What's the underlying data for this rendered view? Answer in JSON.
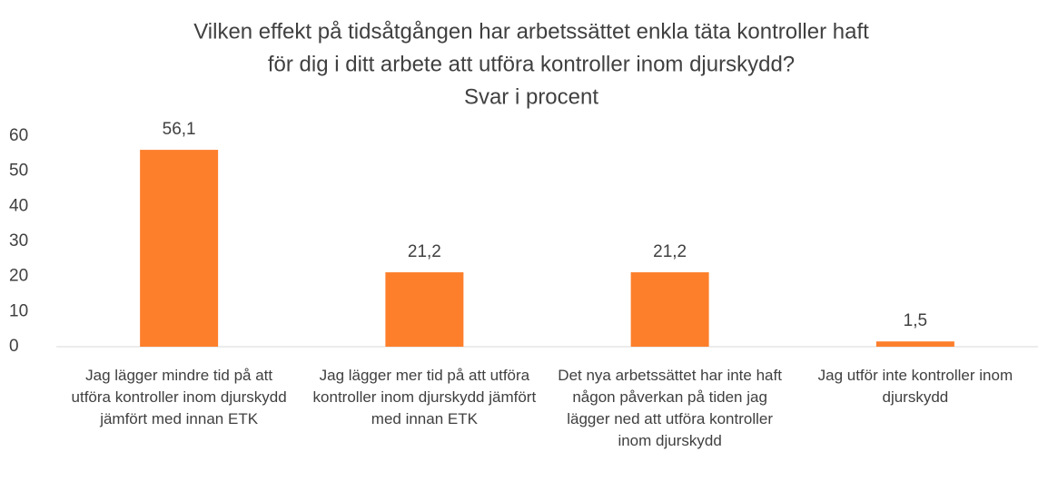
{
  "chart_data": {
    "type": "bar",
    "title": [
      "Vilken effekt på tidsåtgången har arbetssättet enkla täta kontroller haft",
      "för dig i ditt arbete att utföra kontroller inom djurskydd?"
    ],
    "subtitle": "Svar i procent",
    "categories": [
      "Jag lägger mindre tid på att utföra kontroller inom djurskydd jämfört med innan ETK",
      "Jag lägger mer tid på att utföra kontroller inom djurskydd jämfört med innan ETK",
      "Det nya arbetssättet har inte haft någon påverkan på tiden jag lägger ned att utföra kontroller inom djurskydd",
      "Jag utför inte kontroller inom djurskydd"
    ],
    "values": [
      56.1,
      21.2,
      21.2,
      1.5
    ],
    "value_labels": [
      "56,1",
      "21,2",
      "21,2",
      "1,5"
    ],
    "color": "#fd7f2c",
    "ylim": [
      0,
      60
    ],
    "yticks": [
      0,
      10,
      20,
      30,
      40,
      50,
      60
    ],
    "grid": false
  }
}
